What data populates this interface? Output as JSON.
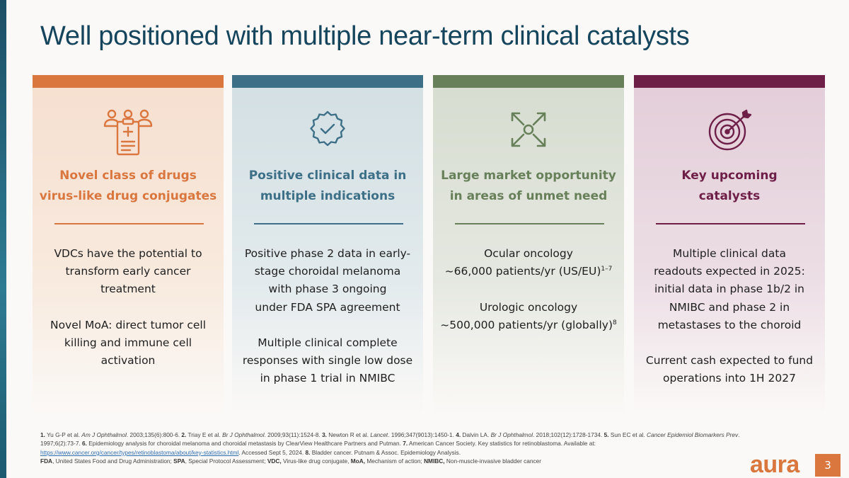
{
  "title": "Well positioned with multiple near-term clinical catalysts",
  "colors": {
    "orange": "#d9773f",
    "teal": "#3d6f87",
    "green": "#67805a",
    "plum": "#6e1f47",
    "title": "#15455c"
  },
  "columns": [
    {
      "icon": "clinical-patients-clipboard-icon",
      "heading": [
        "Novel class of drugs",
        "virus-like drug conjugates"
      ],
      "body": [
        "VDCs have the potential to",
        "transform early cancer",
        "treatment",
        "",
        "Novel MoA: direct tumor cell",
        "killing and immune cell",
        "activation"
      ]
    },
    {
      "icon": "badge-check-icon",
      "heading": [
        "Positive clinical data in",
        "multiple indications"
      ],
      "body": [
        "Positive phase 2 data in early-",
        "stage choroidal melanoma",
        "with phase 3 ongoing",
        "under FDA SPA agreement",
        "",
        "Multiple clinical complete",
        "responses with single low dose",
        "in phase 1 trial in NMIBC"
      ]
    },
    {
      "icon": "expand-arrows-icon",
      "heading": [
        "Large market opportunity",
        "in areas of unmet need"
      ],
      "body": {
        "line1": "Ocular oncology",
        "line2": "~66,000 patients/yr (US/EU)",
        "line2_sup": "1–7",
        "line3": "",
        "line4": "Urologic oncology",
        "line5": "~500,000 patients/yr (globally)",
        "line5_sup": "8"
      }
    },
    {
      "icon": "target-dart-icon",
      "heading": [
        "Key upcoming",
        "catalysts"
      ],
      "body": [
        "Multiple clinical data",
        "readouts expected in 2025:",
        "initial data in phase 1b/2 in",
        "NMIBC and phase 2 in",
        "metastases to the choroid",
        "",
        "Current cash expected to fund",
        "operations into 1H 2027"
      ]
    }
  ],
  "footnotes": {
    "refs": [
      {
        "n": "1.",
        "text": " Yu G-P et al. ",
        "journal": "Am J Ophthalmol",
        "rest": ". 2003;135(6):800-6. "
      },
      {
        "n": "2.",
        "text": " Triay E et al. ",
        "journal": "Br J Ophthalmol",
        "rest": ". 2009;93(11):1524-8. "
      },
      {
        "n": "3.",
        "text": " Newton R et al. ",
        "journal": "Lancet",
        "rest": ". 1996;347(9013):1450-1. "
      },
      {
        "n": "4.",
        "text": " Dalvin LA. ",
        "journal": "Br J Ophthalmol",
        "rest": ". 2018;102(12):1728-1734. "
      },
      {
        "n": "5.",
        "text": " Sun EC et al. ",
        "journal": "Cancer Epidemiol Biomarkers Prev",
        "rest": ". 1997;6(2):73-7. "
      },
      {
        "n": "6.",
        "text": " Epidemiology analysis for choroidal melanoma and choroidal metastasis by ClearView Healthcare Partners and Putman. ",
        "journal": "",
        "rest": ""
      },
      {
        "n": "7.",
        "text": " American Cancer Society. Key statistics for retinoblastoma. Available at: ",
        "journal": "",
        "rest": ""
      }
    ],
    "link": "https://www.cancer.org/cancer/types/retinoblastoma/about/key-statistics.html",
    "after_link": ". Accessed Sept 5, 2024. ",
    "ref8_n": "8.",
    "ref8_text": " Bladder cancer. Putnam & Assoc. Epidemiology Analysis.",
    "abbrev": [
      {
        "k": "FDA",
        "v": ", United States Food and Drug Administration; "
      },
      {
        "k": "SPA",
        "v": ", Special Protocol Assessment; "
      },
      {
        "k": "VDC,",
        "v": "  Virus-like drug conjugate, "
      },
      {
        "k": "MoA,",
        "v": " Mechanism of action; "
      },
      {
        "k": "NMIBC,",
        "v": " Non-muscle-invasive bladder cancer"
      }
    ]
  },
  "logo": "aura",
  "page_number": "3"
}
